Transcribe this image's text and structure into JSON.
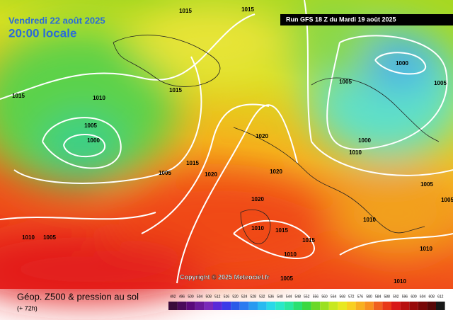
{
  "header": {
    "date": "Vendredi 22 août 2025",
    "time": "20:00 locale",
    "run": "Run GFS 18 Z du Mardi 19 août 2025"
  },
  "copyright": "Copyright © 2025 Meteociel.fr",
  "footer": {
    "title": "Géop. Z500 & pression au sol",
    "lead": "(+ 72h)"
  },
  "scale": [
    492,
    496,
    500,
    504,
    508,
    512,
    516,
    520,
    524,
    528,
    532,
    536,
    540,
    544,
    548,
    552,
    556,
    560,
    564,
    568,
    572,
    576,
    580,
    584,
    588,
    592,
    596,
    600,
    604,
    608,
    612
  ],
  "isobar_labels": [
    "1015",
    "1015",
    "1015",
    "1010",
    "1005",
    "1000",
    "1005",
    "1015",
    "1020",
    "1020",
    "1020",
    "1020",
    "1015",
    "1010",
    "1015",
    "1010",
    "1005",
    "1000",
    "1005",
    "1005",
    "1000",
    "1010",
    "1005",
    "1010",
    "1005",
    "1010",
    "1010",
    "1015",
    "1010",
    "1005"
  ]
}
